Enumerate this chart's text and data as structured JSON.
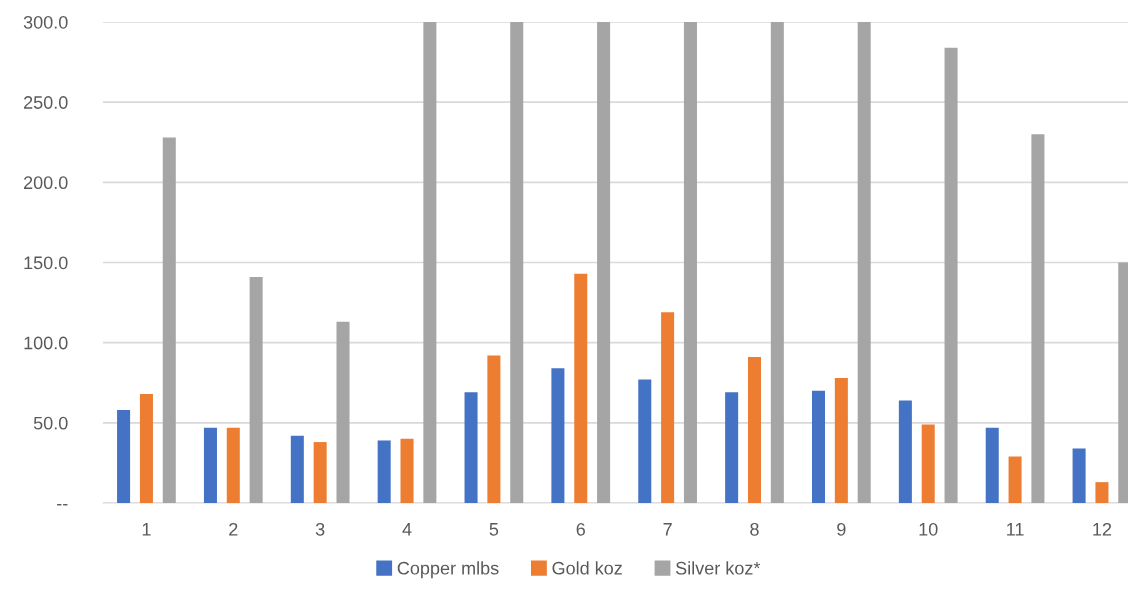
{
  "chart_data": {
    "type": "bar",
    "categories": [
      "1",
      "2",
      "3",
      "4",
      "5",
      "6",
      "7",
      "8",
      "9",
      "10",
      "11",
      "12"
    ],
    "series": [
      {
        "name": "Copper mlbs",
        "color": "#4472c4",
        "values": [
          58,
          47,
          42,
          39,
          69,
          84,
          77,
          69,
          70,
          64,
          47,
          34
        ]
      },
      {
        "name": "Gold koz",
        "color": "#ed7d31",
        "values": [
          68,
          47,
          38,
          40,
          92,
          143,
          119,
          91,
          78,
          49,
          29,
          13
        ]
      },
      {
        "name": "Silver koz*",
        "color": "#a5a5a5",
        "values": [
          228,
          141,
          113,
          300,
          300,
          300,
          300,
          300,
          300,
          284,
          230,
          150
        ]
      }
    ],
    "ylim": [
      0,
      300
    ],
    "yticks": [
      {
        "value": 0,
        "label": "--"
      },
      {
        "value": 50,
        "label": "50.0"
      },
      {
        "value": 100,
        "label": "100.0"
      },
      {
        "value": 150,
        "label": "150.0"
      },
      {
        "value": 200,
        "label": "200.0"
      },
      {
        "value": 250,
        "label": "250.0"
      },
      {
        "value": 300,
        "label": "300.0"
      }
    ],
    "grid": "y",
    "legend": "bottom"
  }
}
